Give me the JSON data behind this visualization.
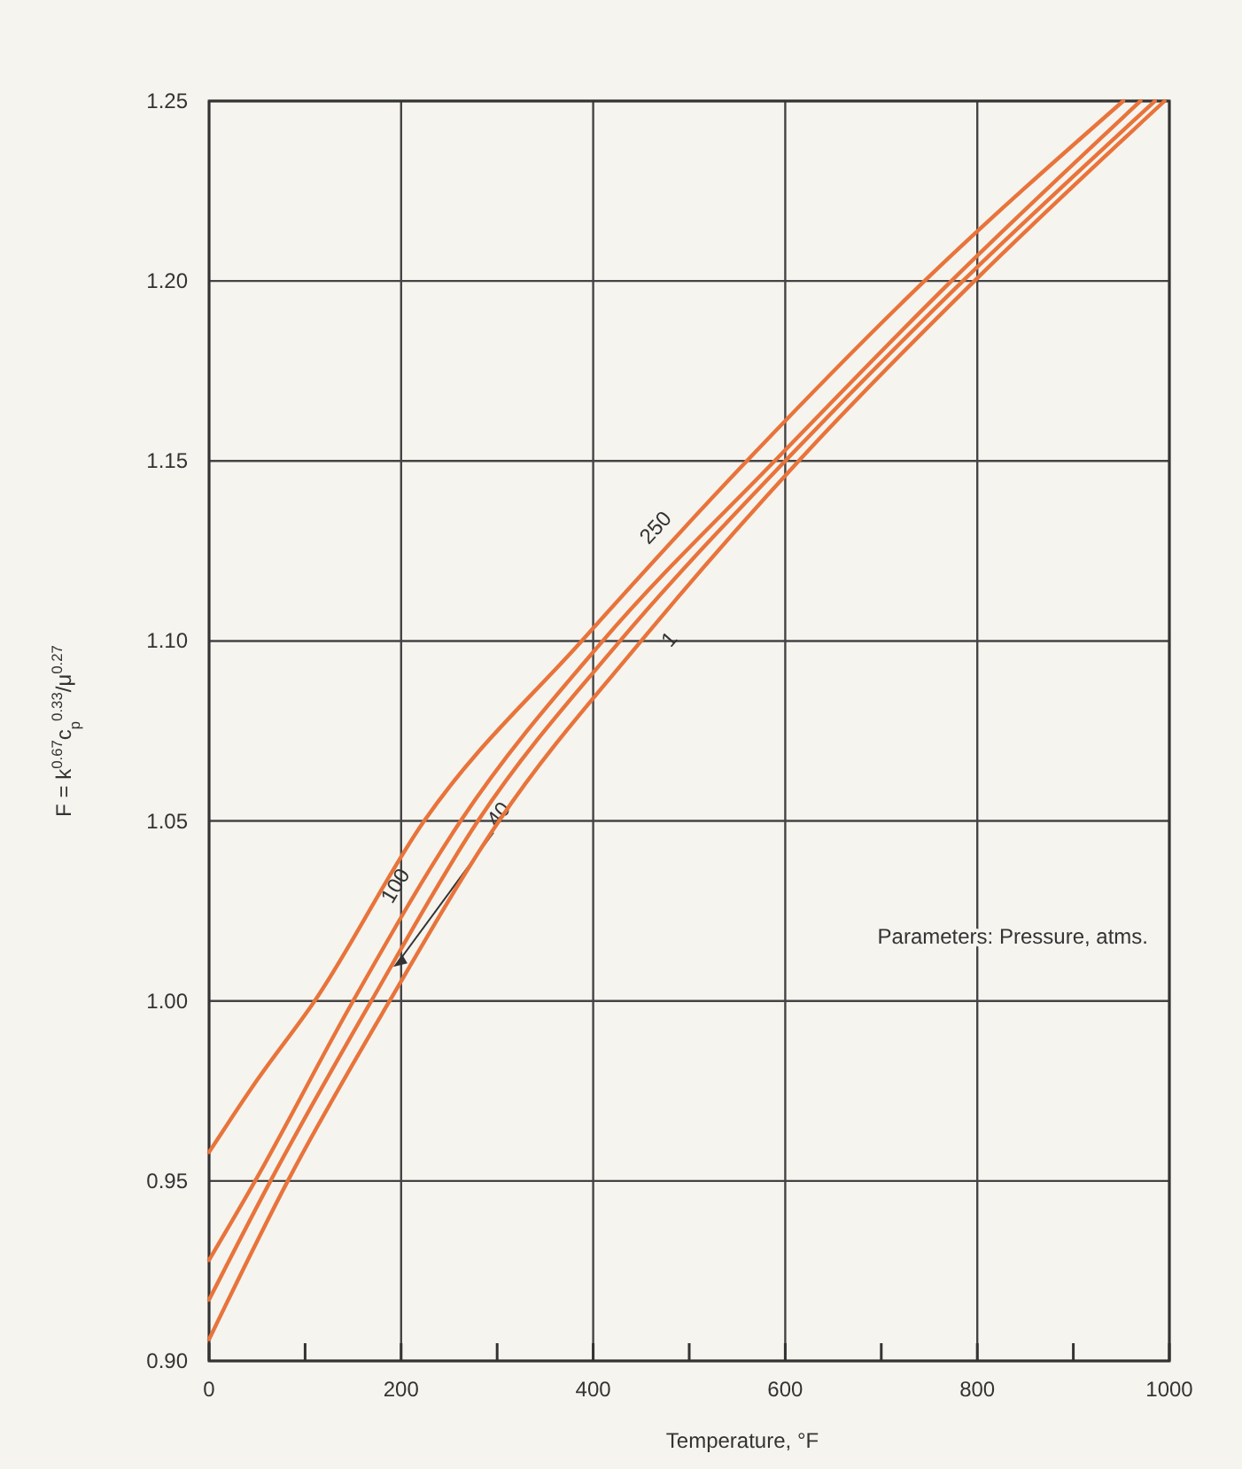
{
  "chart_data": {
    "type": "line",
    "xlabel": "Temperature, °F",
    "ylabel": "F = k$^{0.67}$c$_{p}$$^{0.33}$/μ$^{0.27}$",
    "annotations": [
      "Parameters: Pressure, atms."
    ],
    "series": [
      {
        "name": "250",
        "color": "#e8743b",
        "x": [
          0,
          50,
          110,
          224,
          388,
          560,
          745,
          952
        ],
        "values": [
          0.958,
          0.978,
          1.0,
          1.05,
          1.1,
          1.15,
          1.2,
          1.25
        ]
      },
      {
        "name": "100",
        "color": "#e8743b",
        "x": [
          0,
          48,
          150,
          262,
          410,
          589,
          773,
          970
        ],
        "values": [
          0.928,
          0.95,
          1.0,
          1.05,
          1.1,
          1.15,
          1.2,
          1.25
        ]
      },
      {
        "name": "40",
        "color": "#e8743b",
        "x": [
          0,
          64,
          169,
          280,
          428,
          600,
          785,
          985
        ],
        "values": [
          0.917,
          0.95,
          1.0,
          1.05,
          1.1,
          1.15,
          1.2,
          1.25
        ]
      },
      {
        "name": "1",
        "color": "#e8743b",
        "x": [
          0,
          82,
          188,
          302,
          450,
          614,
          797,
          995
        ],
        "values": [
          0.906,
          0.95,
          1.0,
          1.05,
          1.1,
          1.15,
          1.2,
          1.25
        ]
      }
    ],
    "xlim": [
      0,
      1000
    ],
    "ylim": [
      0.9,
      1.25
    ],
    "xticks": [
      0,
      {
        "value": 100,
        "label": null
      },
      200,
      {
        "value": 300,
        "label": null
      },
      400,
      {
        "value": 500,
        "label": null
      },
      600,
      {
        "value": 700,
        "label": null
      },
      800,
      {
        "value": 900,
        "label": null
      },
      1000
    ],
    "yticks": [
      {
        "value": 0.9,
        "label": "0.90"
      },
      {
        "value": 0.95,
        "label": "0.95"
      },
      {
        "value": 1.0,
        "label": "1.00"
      },
      {
        "value": 1.05,
        "label": "1.05"
      },
      {
        "value": 1.1,
        "label": "1.10"
      },
      {
        "value": 1.15,
        "label": "1.15"
      },
      {
        "value": 1.2,
        "label": "1.20"
      },
      {
        "value": 1.25,
        "label": "1.25"
      }
    ],
    "grid": true,
    "legend": false,
    "marker": "none",
    "line_style": "solid"
  }
}
